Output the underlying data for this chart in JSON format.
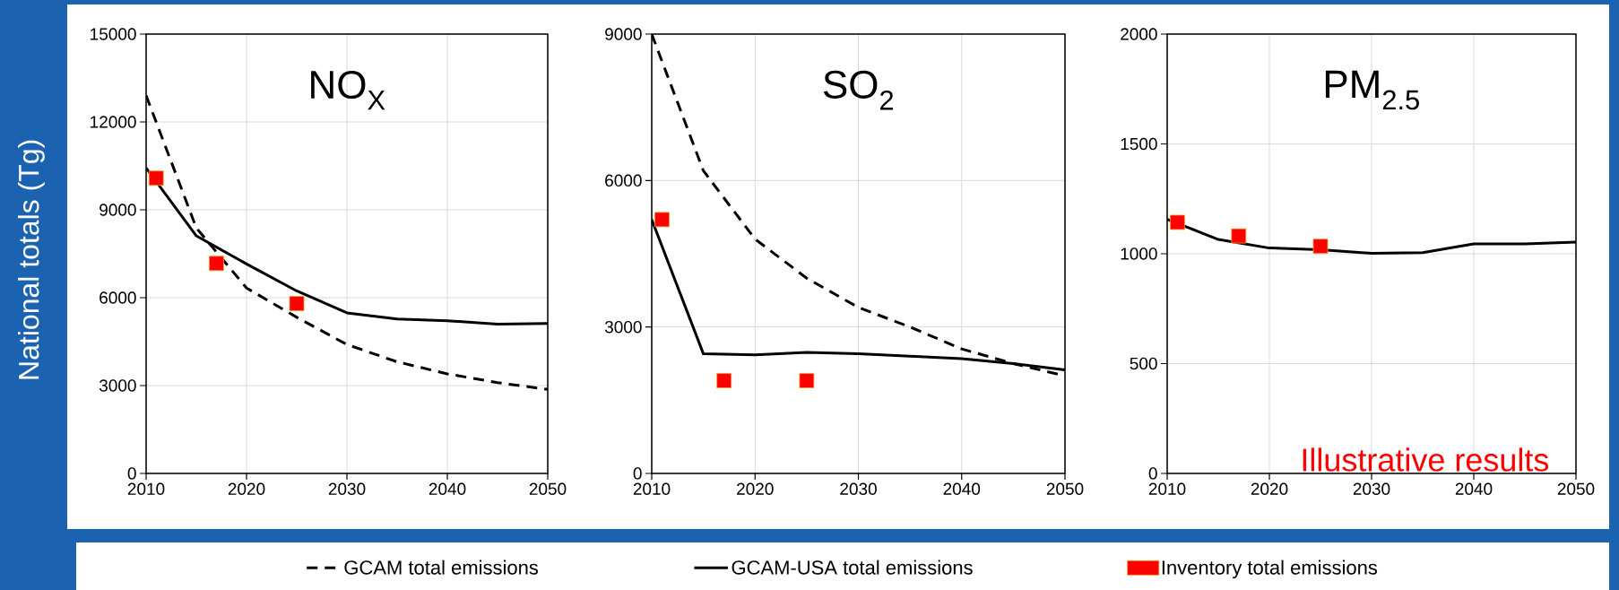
{
  "chart_data": [
    {
      "type": "line",
      "title": "NO$_{X}$",
      "ylabel": "National totals (Tg)",
      "xlim": [
        2010,
        2050
      ],
      "xticks": [
        2010,
        2020,
        2030,
        2040,
        2050
      ],
      "ylim": [
        0,
        15000
      ],
      "yticks": [
        0,
        3000,
        6000,
        9000,
        12000,
        15000
      ],
      "grid": true,
      "legend": "bottom",
      "series": [
        {
          "name": "GCAM total emissions",
          "line_style": "dashed",
          "color": "#000000",
          "x": [
            2010,
            2015,
            2020,
            2025,
            2030,
            2035,
            2040,
            2045,
            2050
          ],
          "values": [
            12900,
            8380,
            6330,
            5330,
            4400,
            3810,
            3400,
            3100,
            2870
          ]
        },
        {
          "name": "GCAM-USA total emissions",
          "line_style": "solid",
          "color": "#000000",
          "x": [
            2010,
            2015,
            2020,
            2025,
            2030,
            2035,
            2040,
            2045,
            2050
          ],
          "values": [
            10430,
            8110,
            7150,
            6230,
            5480,
            5270,
            5210,
            5100,
            5120
          ]
        },
        {
          "name": "Inventory total emissions",
          "type": "scatter",
          "marker": "square",
          "color": "#ff0000",
          "x": [
            2011,
            2017,
            2025
          ],
          "values": [
            10080,
            7170,
            5800
          ]
        }
      ]
    },
    {
      "type": "line",
      "title": "SO$_{2}$",
      "xlim": [
        2010,
        2050
      ],
      "xticks": [
        2010,
        2020,
        2030,
        2040,
        2050
      ],
      "ylim": [
        0,
        9000
      ],
      "yticks": [
        0,
        3000,
        6000,
        9000
      ],
      "grid": true,
      "series": [
        {
          "line_style": "dashed",
          "color": "#000000",
          "x": [
            2010,
            2015,
            2020,
            2025,
            2030,
            2035,
            2040,
            2045,
            2050
          ],
          "values": [
            9000,
            6200,
            4800,
            4000,
            3400,
            3000,
            2550,
            2250,
            2000
          ]
        },
        {
          "line_style": "solid",
          "color": "#000000",
          "x": [
            2010,
            2015,
            2020,
            2025,
            2030,
            2035,
            2040,
            2045,
            2050
          ],
          "values": [
            5200,
            2450,
            2430,
            2480,
            2450,
            2400,
            2350,
            2250,
            2120
          ]
        },
        {
          "type": "scatter",
          "marker": "square",
          "color": "#ff0000",
          "x": [
            2011,
            2017,
            2025
          ],
          "values": [
            5200,
            1900,
            1900
          ]
        }
      ]
    },
    {
      "type": "line",
      "title": "PM$_{2.5}$",
      "xlim": [
        2010,
        2050
      ],
      "xticks": [
        2010,
        2020,
        2030,
        2040,
        2050
      ],
      "ylim": [
        0,
        2000
      ],
      "yticks": [
        0,
        500,
        1000,
        1500,
        2000
      ],
      "grid": true,
      "annotations": [
        "Illustrative results"
      ],
      "series": [
        {
          "line_style": "solid",
          "color": "#000000",
          "x": [
            2010,
            2015,
            2020,
            2025,
            2030,
            2035,
            2040,
            2045,
            2050
          ],
          "values": [
            1157,
            1065,
            1026,
            1018,
            1002,
            1005,
            1045,
            1045,
            1053
          ]
        },
        {
          "type": "scatter",
          "marker": "square",
          "color": "#ff0000",
          "x": [
            2011,
            2017,
            2025
          ],
          "values": [
            1143,
            1081,
            1034
          ]
        }
      ]
    }
  ]
}
